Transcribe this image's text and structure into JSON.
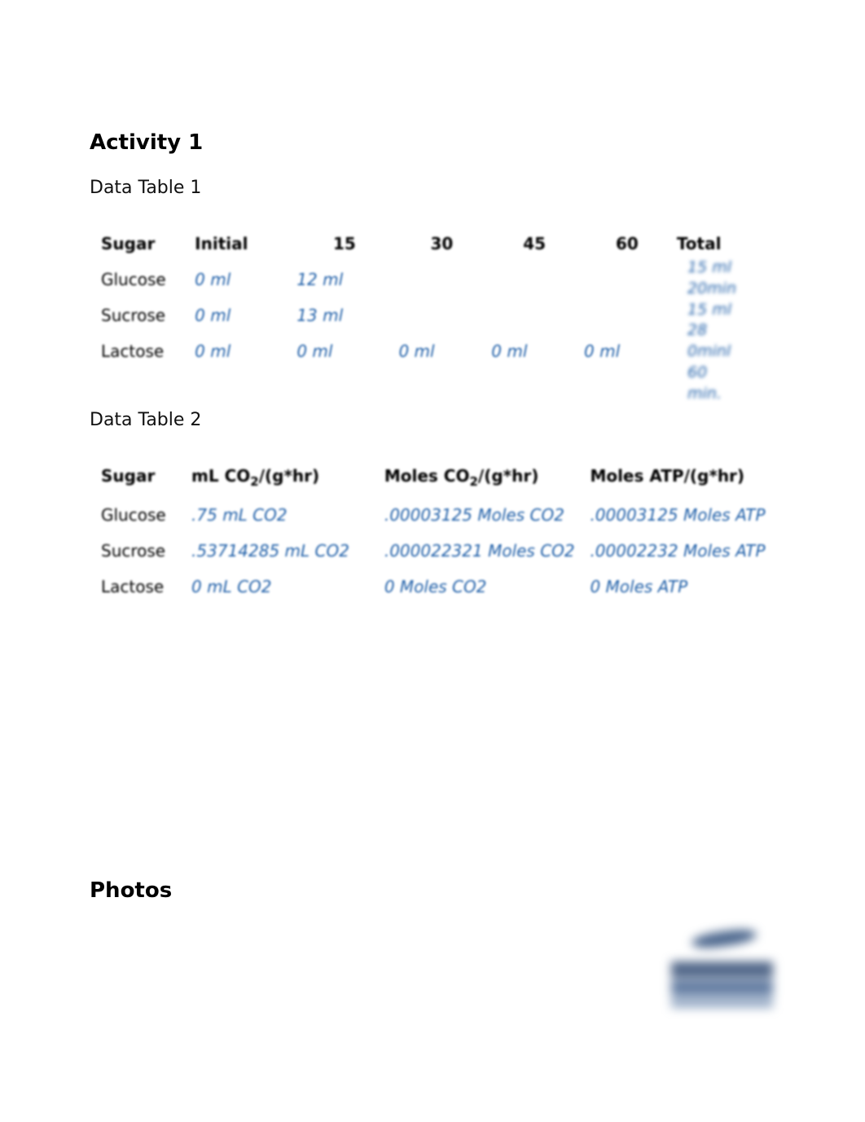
{
  "activity": {
    "title": "Activity 1"
  },
  "table1": {
    "caption": "Data Table 1",
    "headers": [
      "Sugar",
      "Initial",
      "15",
      "30",
      "45",
      "60",
      "Total"
    ],
    "rows": [
      {
        "sugar": "Glucose",
        "initial": "0 ml",
        "t15": "12 ml",
        "t30": "",
        "t45": "",
        "t60": "",
        "total": "15 ml 20min"
      },
      {
        "sugar": "Sucrose",
        "initial": "0 ml",
        "t15": "13 ml",
        "t30": "",
        "t45": "",
        "t60": "",
        "total": "15 ml 28"
      },
      {
        "sugar": "Lactose",
        "initial": "0 ml",
        "t15": "0 ml",
        "t30": "0 ml",
        "t45": "0 ml",
        "t60": "0 ml",
        "total": "0 ml"
      }
    ],
    "overflow_lines": [
      "15 ml",
      "20min",
      "15 ml",
      "28",
      "0minl",
      "60",
      "min."
    ]
  },
  "table2": {
    "caption": "Data Table 2",
    "headers": {
      "sugar": "Sugar",
      "mlco2_pre": "mL CO",
      "mlco2_post": "/(g*hr)",
      "molesco2_pre": "Moles CO",
      "molesco2_post": "/(g*hr)",
      "molesatp": "Moles ATP/(g*hr)"
    },
    "rows": [
      {
        "sugar": "Glucose",
        "ml": ".75 mL CO2",
        "moles": ".00003125 Moles CO2",
        "atp": ".00003125 Moles ATP"
      },
      {
        "sugar": "Sucrose",
        "ml": ".53714285 mL CO2",
        "moles": ".000022321 Moles CO2",
        "atp": ".00002232 Moles ATP"
      },
      {
        "sugar": "Lactose",
        "ml": "0 mL CO2",
        "moles": "0 Moles CO2",
        "atp": "0 Moles ATP"
      }
    ]
  },
  "photos": {
    "title": "Photos"
  },
  "colors": {
    "value_text": "#1f5fa8",
    "body_text": "#000000",
    "background": "#ffffff"
  }
}
